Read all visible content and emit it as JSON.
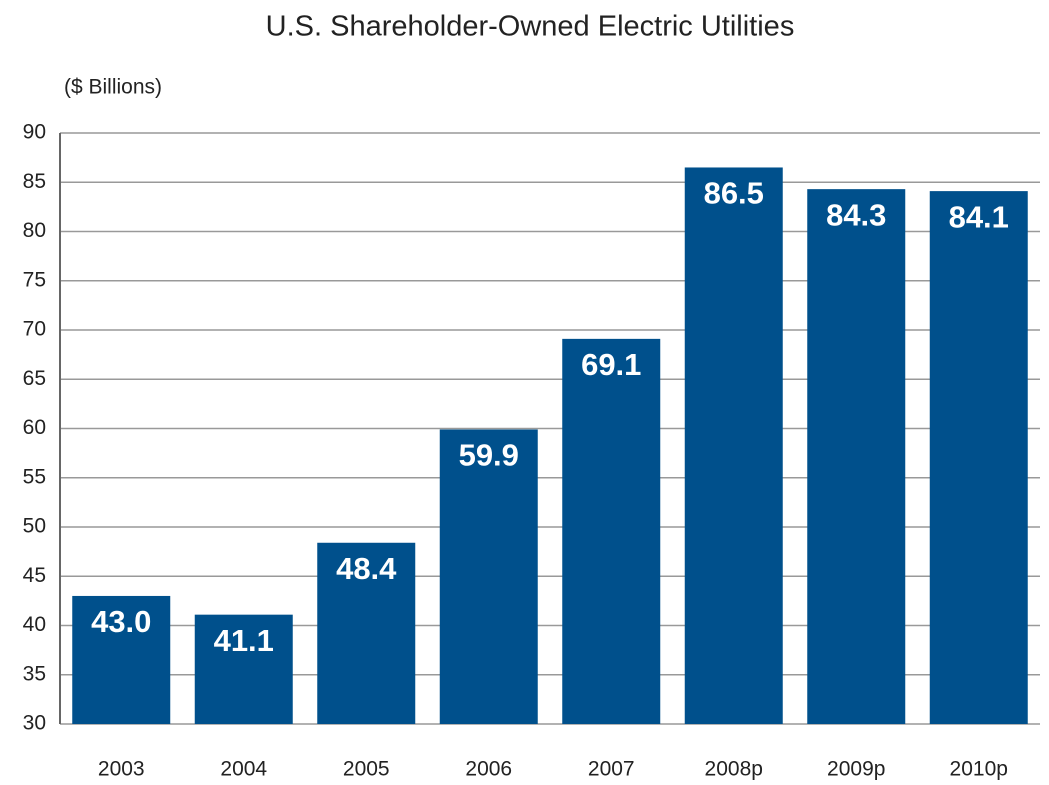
{
  "chart_data": {
    "type": "bar",
    "title": "U.S. Shareholder-Owned Electric Utilities",
    "y_label": "($ Billions)",
    "categories": [
      "2003",
      "2004",
      "2005",
      "2006",
      "2007",
      "2008p",
      "2009p",
      "2010p"
    ],
    "values": [
      43.0,
      41.1,
      48.4,
      59.9,
      69.1,
      86.5,
      84.3,
      84.1
    ],
    "value_labels": [
      "43.0",
      "41.1",
      "48.4",
      "59.9",
      "69.1",
      "86.5",
      "84.3",
      "84.1"
    ],
    "color": "#00508c",
    "ylim": [
      30,
      90
    ],
    "yticks": [
      30,
      35,
      40,
      45,
      50,
      55,
      60,
      65,
      70,
      75,
      80,
      85,
      90
    ],
    "grid": true
  }
}
